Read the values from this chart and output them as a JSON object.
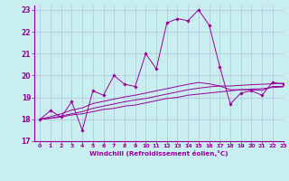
{
  "xlabel": "Windchill (Refroidissement éolien,°C)",
  "xlim": [
    -0.5,
    23
  ],
  "ylim": [
    17,
    23.2
  ],
  "yticks": [
    17,
    18,
    19,
    20,
    21,
    22,
    23
  ],
  "xticks": [
    0,
    1,
    2,
    3,
    4,
    5,
    6,
    7,
    8,
    9,
    10,
    11,
    12,
    13,
    14,
    15,
    16,
    17,
    18,
    19,
    20,
    21,
    22,
    23
  ],
  "bg_color": "#c8eef0",
  "line_color": "#990099",
  "grid_color": "#b0b8d8",
  "lines_with_markers": [
    [
      18.0,
      18.4,
      18.1,
      18.8,
      17.5,
      19.3,
      19.1,
      20.0,
      19.6,
      19.5,
      21.0,
      20.3,
      22.4,
      22.6,
      22.5,
      23.0,
      22.3,
      20.4,
      18.7,
      19.2,
      19.3,
      19.1,
      19.7,
      19.6
    ]
  ],
  "lines_smooth": [
    [
      18.0,
      18.05,
      18.1,
      18.2,
      18.25,
      18.35,
      18.45,
      18.5,
      18.6,
      18.65,
      18.75,
      18.85,
      18.95,
      19.0,
      19.1,
      19.15,
      19.2,
      19.25,
      19.3,
      19.35,
      19.38,
      19.4,
      19.45,
      19.48
    ],
    [
      18.0,
      18.05,
      18.15,
      18.25,
      18.35,
      18.5,
      18.6,
      18.7,
      18.8,
      18.88,
      18.95,
      19.05,
      19.15,
      19.25,
      19.35,
      19.42,
      19.48,
      19.52,
      19.52,
      19.55,
      19.58,
      19.6,
      19.62,
      19.65
    ],
    [
      18.0,
      18.12,
      18.25,
      18.42,
      18.52,
      18.72,
      18.82,
      18.92,
      19.02,
      19.1,
      19.2,
      19.3,
      19.4,
      19.5,
      19.6,
      19.68,
      19.62,
      19.52,
      19.35,
      19.35,
      19.35,
      19.32,
      19.5,
      19.5
    ]
  ]
}
